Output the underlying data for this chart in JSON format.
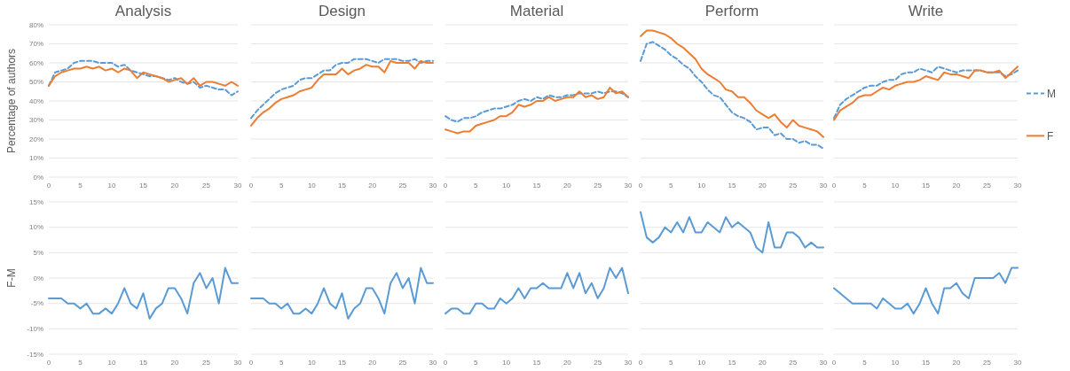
{
  "chart_data": [
    {
      "type": "line",
      "title": "Analysis",
      "ylabel": "Percentage of authors",
      "x": [
        0,
        1,
        2,
        3,
        4,
        5,
        6,
        7,
        8,
        9,
        10,
        11,
        12,
        13,
        14,
        15,
        16,
        17,
        18,
        19,
        20,
        21,
        22,
        23,
        24,
        25,
        26,
        27,
        28,
        29,
        30
      ],
      "xlim": [
        0,
        30
      ],
      "xticks": [
        0,
        5,
        10,
        15,
        20,
        25,
        30
      ],
      "ylim": [
        0,
        80
      ],
      "yticks": [
        {
          "value": 0,
          "label": "0%"
        },
        {
          "value": 10,
          "label": "10%"
        },
        {
          "value": 20,
          "label": "20%"
        },
        {
          "value": 30,
          "label": "30%"
        },
        {
          "value": 40,
          "label": "40%"
        },
        {
          "value": 50,
          "label": "50%"
        },
        {
          "value": 60,
          "label": "60%"
        },
        {
          "value": 70,
          "label": "70%"
        },
        {
          "value": 80,
          "label": "80%"
        }
      ],
      "grid": "y",
      "series": [
        {
          "color": "#5b9bd5",
          "line_style": "dashed",
          "values": [
            48,
            55,
            56,
            57,
            60,
            61,
            61,
            61,
            60,
            60,
            60,
            58,
            59,
            56,
            55,
            54,
            53,
            53,
            52,
            51,
            52,
            50,
            49,
            50,
            47,
            48,
            47,
            46,
            46,
            43,
            45
          ]
        },
        {
          "color": "#ed7d31",
          "line_style": "solid",
          "values": [
            48,
            53,
            55,
            56,
            57,
            57,
            58,
            57,
            58,
            56,
            57,
            55,
            57,
            56,
            52,
            55,
            54,
            53,
            52,
            50,
            51,
            52,
            49,
            52,
            48,
            50,
            50,
            49,
            48,
            50,
            48
          ]
        }
      ]
    },
    {
      "type": "line",
      "title": "Design",
      "x": [
        0,
        1,
        2,
        3,
        4,
        5,
        6,
        7,
        8,
        9,
        10,
        11,
        12,
        13,
        14,
        15,
        16,
        17,
        18,
        19,
        20,
        21,
        22,
        23,
        24,
        25,
        26,
        27,
        28,
        29,
        30
      ],
      "xlim": [
        0,
        30
      ],
      "xticks": [
        0,
        5,
        10,
        15,
        20,
        25,
        30
      ],
      "ylim": [
        0,
        80
      ],
      "yticks": [
        0,
        10,
        20,
        30,
        40,
        50,
        60,
        70,
        80
      ],
      "grid": "y",
      "tick_labels": "x",
      "series": [
        {
          "color": "#5b9bd5",
          "line_style": "dashed",
          "values": [
            31,
            35,
            38,
            41,
            44,
            46,
            47,
            48,
            51,
            52,
            52,
            54,
            56,
            56,
            59,
            60,
            60,
            62,
            62,
            62,
            61,
            60,
            62,
            62,
            62,
            61,
            61,
            62,
            60,
            61,
            61
          ]
        },
        {
          "color": "#ed7d31",
          "line_style": "solid",
          "values": [
            27,
            31,
            34,
            36,
            39,
            41,
            42,
            43,
            45,
            46,
            47,
            51,
            54,
            54,
            54,
            57,
            54,
            56,
            57,
            59,
            58,
            58,
            55,
            61,
            60,
            60,
            60,
            57,
            61,
            60,
            60
          ]
        }
      ]
    },
    {
      "type": "line",
      "title": "Material",
      "x": [
        0,
        1,
        2,
        3,
        4,
        5,
        6,
        7,
        8,
        9,
        10,
        11,
        12,
        13,
        14,
        15,
        16,
        17,
        18,
        19,
        20,
        21,
        22,
        23,
        24,
        25,
        26,
        27,
        28,
        29,
        30
      ],
      "xlim": [
        0,
        30
      ],
      "xticks": [
        0,
        5,
        10,
        15,
        20,
        25,
        30
      ],
      "ylim": [
        0,
        80
      ],
      "yticks": [
        0,
        10,
        20,
        30,
        40,
        50,
        60,
        70,
        80
      ],
      "grid": "y",
      "tick_labels": "x",
      "series": [
        {
          "color": "#5b9bd5",
          "line_style": "dashed",
          "values": [
            32,
            30,
            29,
            31,
            31,
            32,
            34,
            35,
            36,
            36,
            37,
            38,
            40,
            41,
            40,
            42,
            41,
            43,
            42,
            42,
            43,
            43,
            44,
            44,
            44,
            45,
            44,
            45,
            45,
            44,
            42
          ]
        },
        {
          "color": "#ed7d31",
          "line_style": "solid",
          "values": [
            25,
            24,
            23,
            24,
            24,
            27,
            28,
            29,
            30,
            32,
            32,
            34,
            38,
            37,
            38,
            40,
            40,
            42,
            40,
            41,
            42,
            42,
            45,
            42,
            43,
            41,
            42,
            47,
            44,
            45,
            42
          ]
        }
      ]
    },
    {
      "type": "line",
      "title": "Perform",
      "x": [
        0,
        1,
        2,
        3,
        4,
        5,
        6,
        7,
        8,
        9,
        10,
        11,
        12,
        13,
        14,
        15,
        16,
        17,
        18,
        19,
        20,
        21,
        22,
        23,
        24,
        25,
        26,
        27,
        28,
        29,
        30
      ],
      "xlim": [
        0,
        30
      ],
      "xticks": [
        0,
        5,
        10,
        15,
        20,
        25,
        30
      ],
      "ylim": [
        0,
        80
      ],
      "yticks": [
        0,
        10,
        20,
        30,
        40,
        50,
        60,
        70,
        80
      ],
      "grid": "y",
      "tick_labels": "x",
      "series": [
        {
          "color": "#5b9bd5",
          "line_style": "dashed",
          "values": [
            61,
            70,
            71,
            69,
            67,
            64,
            62,
            59,
            57,
            53,
            50,
            46,
            43,
            42,
            38,
            34,
            32,
            31,
            29,
            25,
            26,
            26,
            22,
            23,
            20,
            20,
            18,
            19,
            17,
            17,
            15
          ]
        },
        {
          "color": "#ed7d31",
          "line_style": "solid",
          "values": [
            74,
            77,
            77,
            76,
            75,
            73,
            70,
            68,
            65,
            62,
            57,
            54,
            52,
            50,
            46,
            45,
            42,
            42,
            39,
            35,
            33,
            31,
            33,
            29,
            26,
            30,
            27,
            26,
            25,
            24,
            21
          ]
        }
      ]
    },
    {
      "type": "line",
      "title": "Write",
      "x": [
        0,
        1,
        2,
        3,
        4,
        5,
        6,
        7,
        8,
        9,
        10,
        11,
        12,
        13,
        14,
        15,
        16,
        17,
        18,
        19,
        20,
        21,
        22,
        23,
        24,
        25,
        26,
        27,
        28,
        29,
        30
      ],
      "xlim": [
        0,
        30
      ],
      "xticks": [
        0,
        5,
        10,
        15,
        20,
        25,
        30
      ],
      "ylim": [
        0,
        80
      ],
      "yticks": [
        0,
        10,
        20,
        30,
        40,
        50,
        60,
        70,
        80
      ],
      "grid": "y",
      "tick_labels": "x",
      "legend": "right",
      "series": [
        {
          "name": "M",
          "color": "#5b9bd5",
          "line_style": "dashed",
          "values": [
            31,
            38,
            41,
            43,
            45,
            47,
            48,
            48,
            50,
            51,
            51,
            54,
            55,
            55,
            57,
            56,
            55,
            58,
            57,
            56,
            55,
            56,
            56,
            56,
            56,
            55,
            55,
            55,
            53,
            54,
            56
          ]
        },
        {
          "name": "F",
          "color": "#ed7d31",
          "line_style": "solid",
          "values": [
            30,
            35,
            37,
            39,
            42,
            43,
            43,
            45,
            47,
            46,
            48,
            49,
            50,
            50,
            51,
            53,
            52,
            51,
            55,
            54,
            54,
            53,
            52,
            56,
            56,
            55,
            55,
            56,
            52,
            55,
            58
          ]
        }
      ]
    },
    {
      "type": "line",
      "ylabel": "F-M",
      "x": [
        0,
        1,
        2,
        3,
        4,
        5,
        6,
        7,
        8,
        9,
        10,
        11,
        12,
        13,
        14,
        15,
        16,
        17,
        18,
        19,
        20,
        21,
        22,
        23,
        24,
        25,
        26,
        27,
        28,
        29,
        30
      ],
      "xlim": [
        0,
        30
      ],
      "xticks": [
        0,
        5,
        10,
        15,
        20,
        25,
        30
      ],
      "ylim": [
        -15,
        15
      ],
      "yticks": [
        {
          "value": -15,
          "label": "-15%"
        },
        {
          "value": -10,
          "label": "-10%"
        },
        {
          "value": -5,
          "label": "-5%"
        },
        {
          "value": 0,
          "label": "0%"
        },
        {
          "value": 5,
          "label": "5%"
        },
        {
          "value": 10,
          "label": "10%"
        },
        {
          "value": 15,
          "label": "15%"
        }
      ],
      "grid": "y",
      "series": [
        {
          "color": "#5b9bd5",
          "line_style": "solid",
          "values": [
            -4,
            -4,
            -4,
            -5,
            -5,
            -6,
            -5,
            -7,
            -7,
            -6,
            -7,
            -5,
            -2,
            -5,
            -6,
            -3,
            -8,
            -6,
            -5,
            -2,
            -2,
            -4,
            -7,
            -1,
            1,
            -2,
            0,
            -5,
            2,
            -1,
            -1
          ]
        }
      ]
    },
    {
      "type": "line",
      "x": [
        0,
        1,
        2,
        3,
        4,
        5,
        6,
        7,
        8,
        9,
        10,
        11,
        12,
        13,
        14,
        15,
        16,
        17,
        18,
        19,
        20,
        21,
        22,
        23,
        24,
        25,
        26,
        27,
        28,
        29,
        30
      ],
      "xlim": [
        0,
        30
      ],
      "xticks": [
        0,
        5,
        10,
        15,
        20,
        25,
        30
      ],
      "ylim": [
        -15,
        15
      ],
      "yticks": [
        -15,
        -10,
        -5,
        0,
        5,
        10,
        15
      ],
      "grid": "y",
      "tick_labels": "x",
      "series": [
        {
          "color": "#5b9bd5",
          "line_style": "solid",
          "values": [
            -4,
            -4,
            -4,
            -5,
            -5,
            -6,
            -5,
            -7,
            -7,
            -6,
            -7,
            -5,
            -2,
            -5,
            -6,
            -3,
            -8,
            -6,
            -5,
            -2,
            -2,
            -4,
            -7,
            -1,
            1,
            -2,
            0,
            -5,
            2,
            -1,
            -1
          ]
        }
      ]
    },
    {
      "type": "line",
      "x": [
        0,
        1,
        2,
        3,
        4,
        5,
        6,
        7,
        8,
        9,
        10,
        11,
        12,
        13,
        14,
        15,
        16,
        17,
        18,
        19,
        20,
        21,
        22,
        23,
        24,
        25,
        26,
        27,
        28,
        29,
        30
      ],
      "xlim": [
        0,
        30
      ],
      "xticks": [
        0,
        5,
        10,
        15,
        20,
        25,
        30
      ],
      "ylim": [
        -15,
        15
      ],
      "yticks": [
        -15,
        -10,
        -5,
        0,
        5,
        10,
        15
      ],
      "grid": "y",
      "tick_labels": "x",
      "series": [
        {
          "color": "#5b9bd5",
          "line_style": "solid",
          "values": [
            -7,
            -6,
            -6,
            -7,
            -7,
            -5,
            -5,
            -6,
            -6,
            -4,
            -5,
            -4,
            -2,
            -4,
            -2,
            -2,
            -1,
            -2,
            -2,
            -2,
            1,
            -2,
            1,
            -3,
            -1,
            -4,
            -2,
            2,
            0,
            2,
            -3
          ]
        }
      ]
    },
    {
      "type": "line",
      "x": [
        0,
        1,
        2,
        3,
        4,
        5,
        6,
        7,
        8,
        9,
        10,
        11,
        12,
        13,
        14,
        15,
        16,
        17,
        18,
        19,
        20,
        21,
        22,
        23,
        24,
        25,
        26,
        27,
        28,
        29,
        30
      ],
      "xlim": [
        0,
        30
      ],
      "xticks": [
        0,
        5,
        10,
        15,
        20,
        25,
        30
      ],
      "ylim": [
        -15,
        15
      ],
      "yticks": [
        -15,
        -10,
        -5,
        0,
        5,
        10,
        15
      ],
      "grid": "y",
      "tick_labels": "x",
      "series": [
        {
          "color": "#5b9bd5",
          "line_style": "solid",
          "values": [
            13,
            8,
            7,
            8,
            10,
            9,
            11,
            9,
            12,
            9,
            9,
            11,
            10,
            9,
            12,
            10,
            11,
            10,
            9,
            6,
            5,
            11,
            6,
            6,
            9,
            9,
            8,
            6,
            7,
            6,
            6
          ]
        }
      ]
    },
    {
      "type": "line",
      "x": [
        0,
        1,
        2,
        3,
        4,
        5,
        6,
        7,
        8,
        9,
        10,
        11,
        12,
        13,
        14,
        15,
        16,
        17,
        18,
        19,
        20,
        21,
        22,
        23,
        24,
        25,
        26,
        27,
        28,
        29,
        30
      ],
      "xlim": [
        0,
        30
      ],
      "xticks": [
        0,
        5,
        10,
        15,
        20,
        25,
        30
      ],
      "ylim": [
        -15,
        15
      ],
      "yticks": [
        -15,
        -10,
        -5,
        0,
        5,
        10,
        15
      ],
      "grid": "y",
      "tick_labels": "x",
      "series": [
        {
          "color": "#5b9bd5",
          "line_style": "solid",
          "values": [
            -2,
            -3,
            -4,
            -5,
            -5,
            -5,
            -5,
            -6,
            -4,
            -5,
            -6,
            -6,
            -5,
            -7,
            -5,
            -2,
            -5,
            -7,
            -2,
            -2,
            -1,
            -3,
            -4,
            0,
            0,
            0,
            0,
            1,
            -1,
            2,
            2
          ]
        }
      ]
    }
  ]
}
